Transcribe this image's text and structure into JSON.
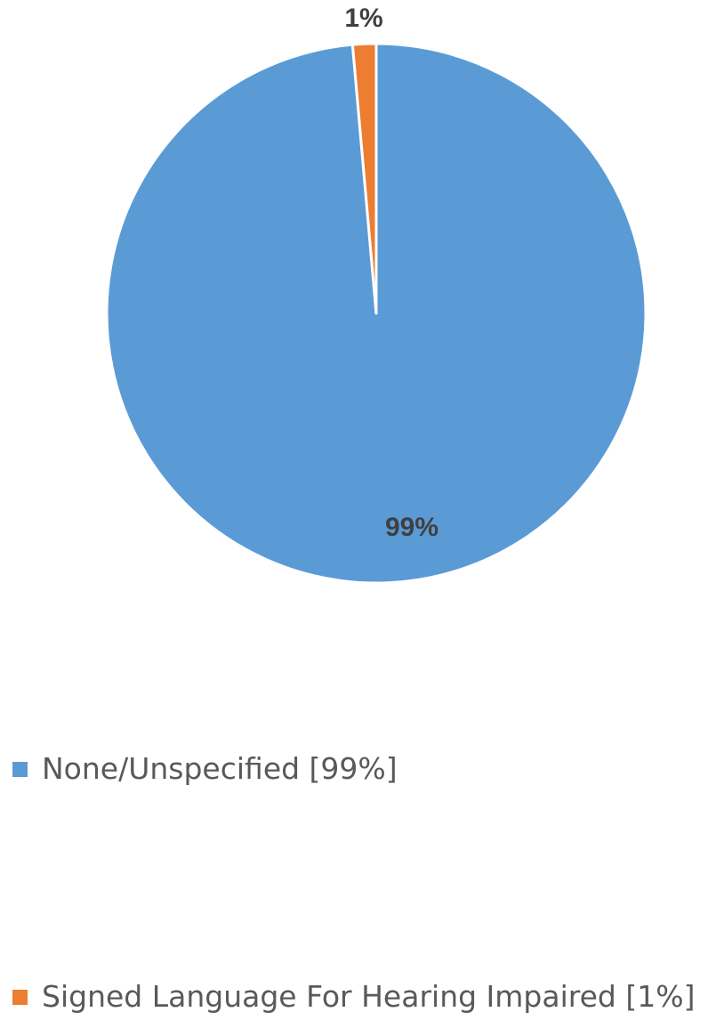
{
  "chart_data": {
    "type": "pie",
    "title": "",
    "slices": [
      {
        "label": "None/Unspecified",
        "value": 98.6,
        "display": "99%",
        "legend": "None/Unspecified [99%]",
        "color": "#5b9bd5"
      },
      {
        "label": "Signed Language For Hearing Impaired",
        "value": 1.4,
        "display": "1%",
        "legend": "Signed Language For Hearing Impaired [1%]",
        "color": "#ed7d31"
      }
    ],
    "legend_position": "bottom"
  }
}
